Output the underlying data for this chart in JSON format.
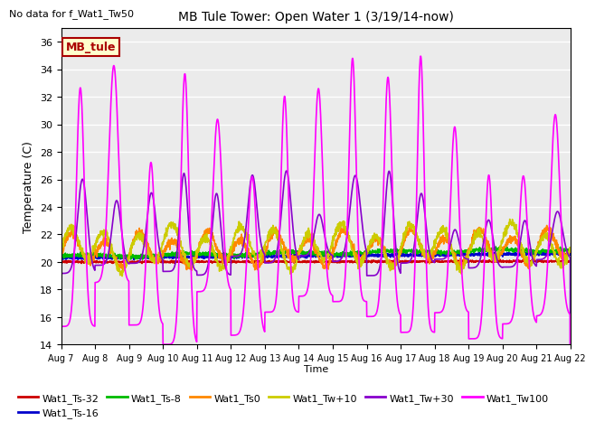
{
  "title": "MB Tule Tower: Open Water 1 (3/19/14-now)",
  "no_data_text": "No data for f_Wat1_Tw50",
  "ylabel": "Temperature (C)",
  "xlabel": "Time",
  "ylim": [
    14,
    37
  ],
  "xlim_days": [
    0,
    15
  ],
  "x_tick_labels": [
    "Aug 7",
    "Aug 8",
    "Aug 9",
    "Aug 10",
    "Aug 11",
    "Aug 12",
    "Aug 13",
    "Aug 14",
    "Aug 15",
    "Aug 16",
    "Aug 17",
    "Aug 18",
    "Aug 19",
    "Aug 20",
    "Aug 21",
    "Aug 22"
  ],
  "legend_box_label": "MB_tule",
  "legend_box_color": "#ffffcc",
  "legend_box_edge": "#aa0000",
  "series_colors": {
    "Wat1_Ts-32": "#cc0000",
    "Wat1_Ts-16": "#0000cc",
    "Wat1_Ts-8": "#00bb00",
    "Wat1_Ts0": "#ff8800",
    "Wat1_Tw+10": "#cccc00",
    "Wat1_Tw+30": "#8800cc",
    "Wat1_Tw100": "#ff00ff"
  },
  "bg_color": "#ebebeb"
}
